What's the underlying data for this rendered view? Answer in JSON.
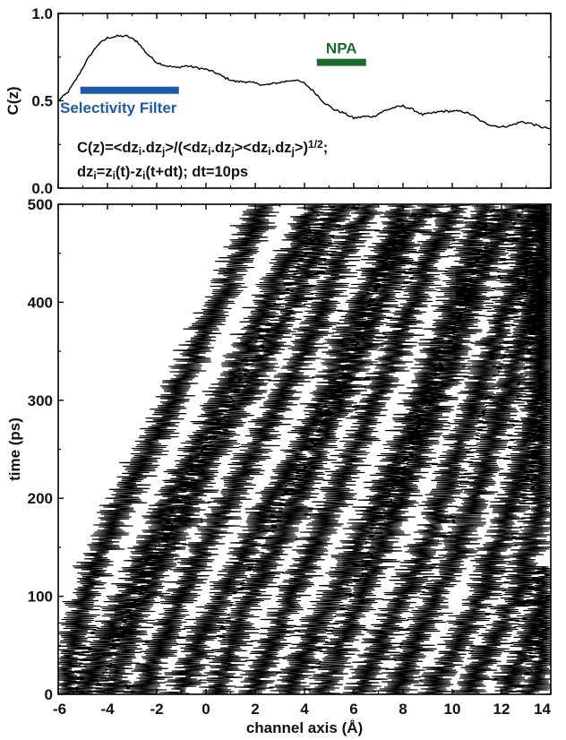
{
  "chart_data": [
    {
      "type": "line",
      "panel": "top",
      "ylabel": "C(z)",
      "xlim": [
        -6,
        14
      ],
      "ylim": [
        0.0,
        1.0
      ],
      "x_ticks": [
        -6,
        -4,
        -2,
        0,
        2,
        4,
        6,
        8,
        10,
        12,
        14
      ],
      "y_ticks": [
        "0.0",
        "0.5",
        "1.0"
      ],
      "grid": false,
      "series": [
        {
          "x": [
            -6.0,
            -5.6,
            -5.2,
            -4.8,
            -4.4,
            -4.0,
            -3.6,
            -3.2,
            -2.8,
            -2.4,
            -2.0,
            -1.6,
            -1.2,
            -0.8,
            -0.4,
            0.0,
            0.4,
            0.8,
            1.2,
            1.6,
            2.0,
            2.4,
            2.8,
            3.2,
            3.6,
            4.0,
            4.4,
            4.8,
            5.2,
            5.6,
            6.0,
            6.4,
            6.8,
            7.2,
            7.6,
            8.0,
            8.4,
            8.8,
            9.2,
            9.6,
            10.0,
            10.4,
            10.8,
            11.2,
            11.6,
            12.0,
            12.4,
            12.8,
            13.2,
            13.6,
            14.0
          ],
          "y": [
            0.5,
            0.55,
            0.64,
            0.74,
            0.82,
            0.86,
            0.87,
            0.87,
            0.84,
            0.77,
            0.72,
            0.7,
            0.69,
            0.7,
            0.69,
            0.68,
            0.66,
            0.63,
            0.61,
            0.61,
            0.6,
            0.59,
            0.6,
            0.61,
            0.62,
            0.6,
            0.55,
            0.49,
            0.45,
            0.43,
            0.4,
            0.41,
            0.41,
            0.44,
            0.46,
            0.47,
            0.45,
            0.42,
            0.43,
            0.44,
            0.44,
            0.44,
            0.42,
            0.38,
            0.36,
            0.35,
            0.36,
            0.38,
            0.37,
            0.35,
            0.34
          ]
        }
      ],
      "annotations": {
        "selectivity_filter": {
          "label": "Selectivity Filter",
          "x_range": [
            -5.1,
            -1.1
          ],
          "y": 0.56,
          "color": "#1f5aa6"
        },
        "npa": {
          "label": "NPA",
          "x_range": [
            4.5,
            6.5
          ],
          "y": 0.72,
          "color": "#1d6b2c"
        },
        "formula_line1": {
          "parts": [
            "C(z)=<dz",
            "i",
            ".dz",
            "j",
            ">/(<dz",
            "i",
            ".dz",
            "j",
            "><dz",
            "i",
            ".dz",
            "j",
            ">)",
            "1/2",
            ";"
          ]
        },
        "formula_line2": {
          "parts": [
            "dz",
            "i",
            "=z",
            "i",
            "(t)-z",
            "i",
            "(t+dt); dt=10ps"
          ]
        }
      }
    },
    {
      "type": "line",
      "panel": "bottom",
      "xlabel": "channel axis (Å)",
      "ylabel": "time (ps)",
      "xlim": [
        -6,
        14
      ],
      "ylim": [
        0,
        500
      ],
      "x_ticks": [
        "-6",
        "-4",
        "-2",
        "0",
        "2",
        "4",
        "6",
        "8",
        "10",
        "12",
        "14"
      ],
      "y_ticks": [
        "0",
        "100",
        "200",
        "300",
        "400",
        "500"
      ],
      "grid": false,
      "series": [
        {
          "t": [
            0,
            60,
            130,
            200,
            260,
            330,
            400,
            470,
            500
          ],
          "x": [
            -5.8,
            -5.4,
            -4.5,
            -3.3,
            -2.1,
            -0.8,
            0.5,
            1.8,
            2.3
          ]
        },
        {
          "t": [
            0,
            50,
            120,
            190,
            260,
            330,
            400,
            460,
            500
          ],
          "x": [
            -5.0,
            -4.2,
            -2.8,
            -1.6,
            -0.2,
            1.2,
            2.5,
            3.7,
            4.5
          ]
        },
        {
          "t": [
            0,
            70,
            140,
            210,
            280,
            340,
            400,
            460,
            500
          ],
          "x": [
            -3.8,
            -3.0,
            -1.7,
            -0.4,
            1.0,
            2.3,
            3.5,
            4.6,
            5.5
          ]
        },
        {
          "t": [
            0,
            60,
            130,
            200,
            270,
            340,
            410,
            470,
            500
          ],
          "x": [
            -2.5,
            -1.7,
            -0.5,
            1.0,
            2.4,
            3.8,
            4.9,
            6.0,
            6.8
          ]
        },
        {
          "t": [
            0,
            60,
            120,
            190,
            250,
            310,
            380,
            450,
            500
          ],
          "x": [
            -1.0,
            -0.2,
            1.1,
            2.5,
            3.8,
            5.0,
            6.0,
            7.3,
            8.0
          ]
        },
        {
          "t": [
            0,
            70,
            140,
            210,
            280,
            350,
            410,
            470,
            500
          ],
          "x": [
            0.4,
            1.3,
            2.6,
            3.9,
            5.1,
            6.3,
            7.2,
            8.2,
            9.1
          ]
        },
        {
          "t": [
            0,
            60,
            130,
            200,
            270,
            340,
            400,
            460,
            500
          ],
          "x": [
            1.8,
            2.8,
            4.0,
            5.2,
            6.4,
            7.5,
            8.4,
            9.3,
            10.2
          ]
        },
        {
          "t": [
            0,
            60,
            120,
            180,
            240,
            300,
            360,
            430,
            500
          ],
          "x": [
            3.3,
            4.3,
            5.6,
            6.7,
            7.8,
            8.7,
            9.5,
            10.5,
            11.3
          ]
        },
        {
          "t": [
            0,
            70,
            140,
            210,
            280,
            340,
            400,
            460,
            500
          ],
          "x": [
            4.7,
            5.8,
            7.0,
            8.1,
            9.1,
            10.0,
            10.8,
            11.7,
            12.4
          ]
        },
        {
          "t": [
            0,
            60,
            120,
            190,
            260,
            320,
            380,
            440,
            500
          ],
          "x": [
            6.2,
            7.2,
            8.4,
            9.5,
            10.4,
            11.2,
            12.0,
            12.8,
            13.3
          ]
        },
        {
          "t": [
            0,
            60,
            130,
            200,
            270,
            330,
            390,
            450,
            500
          ],
          "x": [
            7.6,
            8.7,
            9.9,
            10.9,
            11.7,
            12.5,
            13.1,
            13.6,
            13.9
          ]
        },
        {
          "t": [
            0,
            50,
            110,
            180,
            240,
            300,
            360,
            430,
            500
          ],
          "x": [
            9.1,
            10.2,
            11.3,
            12.2,
            12.9,
            13.4,
            13.7,
            13.9,
            13.8
          ]
        },
        {
          "t": [
            0,
            50,
            100,
            150,
            200,
            260,
            320,
            380,
            440
          ],
          "x": [
            10.6,
            11.6,
            12.6,
            13.2,
            13.6,
            13.8,
            13.9,
            13.7,
            13.9
          ]
        },
        {
          "t": [
            0,
            40,
            90,
            130
          ],
          "x": [
            12.0,
            12.9,
            13.6,
            14.0
          ]
        },
        {
          "t": [
            0,
            30,
            60,
            100
          ],
          "x": [
            13.2,
            13.7,
            13.9,
            14.0
          ]
        }
      ]
    }
  ]
}
